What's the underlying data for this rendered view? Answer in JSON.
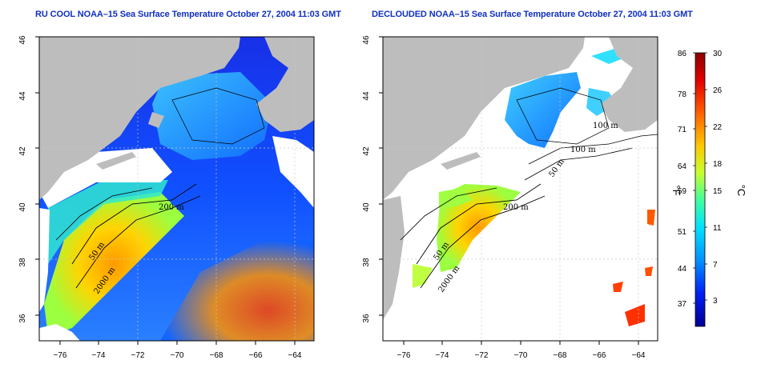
{
  "maps": [
    {
      "title": "RU COOL NOAA–15 Sea Surface Temperature October 27, 2004 11:03 GMT",
      "contour_labels": [
        "200 m",
        "50 m",
        "2000 m"
      ]
    },
    {
      "title": "DECLOUDED NOAA–15 Sea Surface Temperature October 27, 2004 11:03 GMT",
      "contour_labels": [
        "100 m",
        "100 m",
        "50 m",
        "200 m",
        "50 m",
        "2000 m"
      ]
    }
  ],
  "x_ticks": [
    "−76",
    "−74",
    "−72",
    "−70",
    "−68",
    "−66",
    "−64"
  ],
  "y_ticks": [
    "46",
    "44",
    "42",
    "40",
    "38",
    "36"
  ],
  "colorbar": {
    "f_label": "°F",
    "c_label": "°C",
    "f_ticks": [
      "86",
      "78",
      "71",
      "64",
      "59",
      "51",
      "44",
      "37"
    ],
    "c_ticks": [
      "30",
      "26",
      "22",
      "18",
      "15",
      "11",
      "7",
      "3"
    ],
    "colors": [
      "#8b0000",
      "#ff2000",
      "#ff8000",
      "#ffd000",
      "#c8ff40",
      "#40ffb0",
      "#00c8ff",
      "#0060ff",
      "#0000d0",
      "#00008b"
    ]
  },
  "colors": {
    "land": "#bdbdbd",
    "cloud": "#ffffff",
    "title": "#1030c0"
  }
}
